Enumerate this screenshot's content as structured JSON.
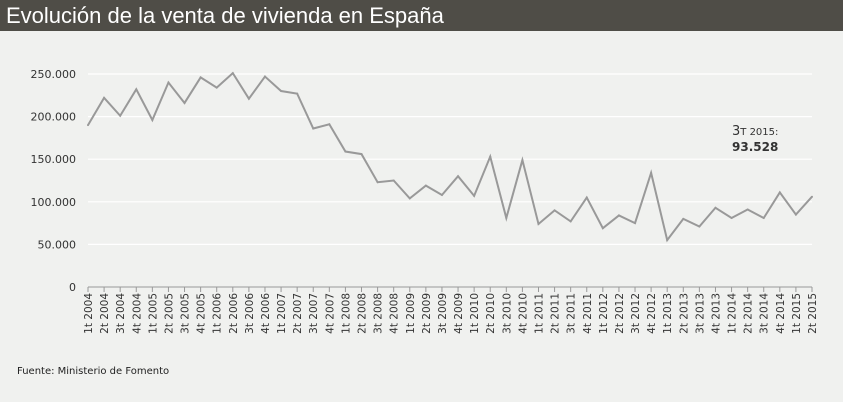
{
  "chart_data": {
    "type": "line",
    "title": "Evolución de la venta de vivienda en España",
    "source": "Fuente: Ministerio de Fomento",
    "ylim": [
      0,
      250000
    ],
    "yticks": [
      "0",
      "50.000",
      "100.000",
      "150.000",
      "200.000",
      "250.000"
    ],
    "ytick_values": [
      0,
      50000,
      100000,
      150000,
      200000,
      250000
    ],
    "grid": true,
    "line_color": "#999999",
    "annotation": {
      "period_num": "3",
      "period_rest": "T 2015:",
      "value": "93.528"
    },
    "categories": [
      "1t 2004",
      "2t 2004",
      "3t 2004",
      "4t 2004",
      "1t 2005",
      "2t 2005",
      "3t 2005",
      "4t 2005",
      "1t 2006",
      "2t 2006",
      "3t 2006",
      "4t 2006",
      "1t 2007",
      "2t 2007",
      "3t 2007",
      "4t 2007",
      "1t 2008",
      "2t 2008",
      "3t 2008",
      "4t 2008",
      "1t 2009",
      "2t 2009",
      "3t 2009",
      "4t 2009",
      "1t 2010",
      "2t 2010",
      "3t 2010",
      "4t 2010",
      "1t 2011",
      "2t 2011",
      "3t 2011",
      "4t 2011",
      "1t 2012",
      "2t 2012",
      "3t 2012",
      "4t 2012",
      "1t 2013",
      "2t 2013",
      "3t 2013",
      "4t 2013",
      "1t 2014",
      "2t 2014",
      "3t 2014",
      "4t 2014",
      "1t 2015",
      "2t 2015"
    ],
    "values": [
      190000,
      222000,
      201000,
      232000,
      196000,
      240000,
      216000,
      246000,
      234000,
      251000,
      221000,
      247000,
      230000,
      227000,
      186000,
      191000,
      159000,
      156000,
      123000,
      125000,
      104000,
      119000,
      108000,
      130000,
      107000,
      153000,
      81000,
      149000,
      74000,
      90000,
      77000,
      105000,
      69000,
      84000,
      75000,
      134000,
      55000,
      80000,
      71000,
      93000,
      81000,
      91000,
      81000,
      111000,
      85000,
      106000
    ]
  }
}
